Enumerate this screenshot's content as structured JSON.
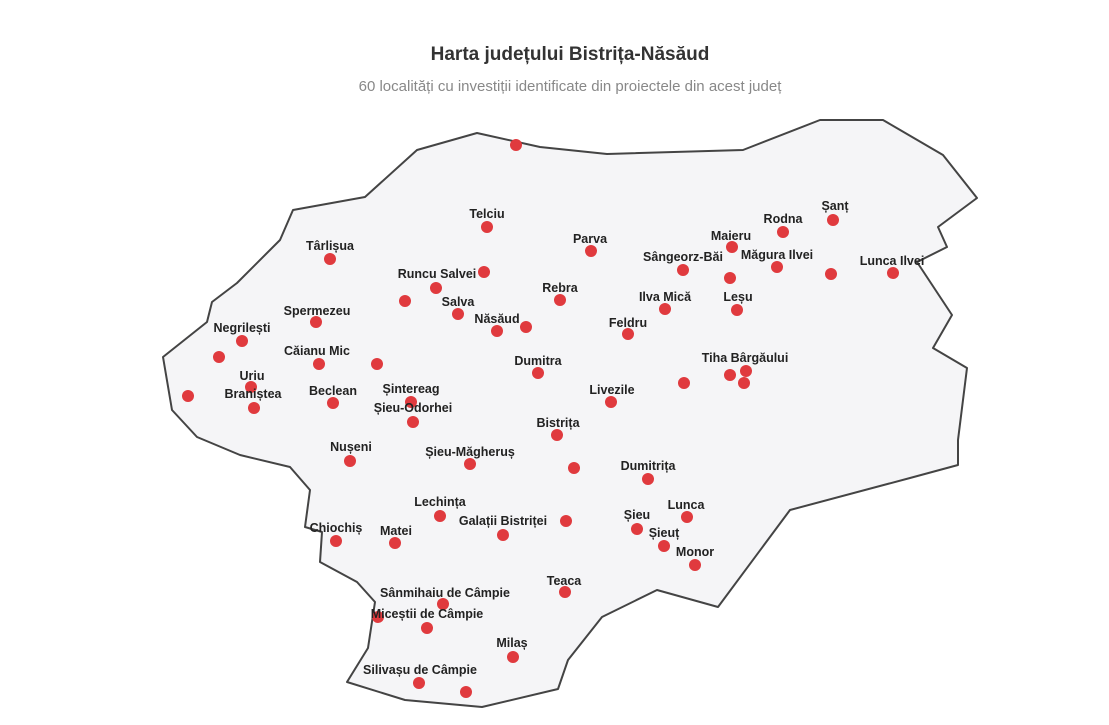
{
  "header": {
    "title": "Harta județului Bistrița-Năsăud",
    "subtitle": "60 localități cu investiții identificate din proiectele din acest județ"
  },
  "map": {
    "region": "Bistrița-Năsăud",
    "fill_color": "#f5f5f7",
    "border_color": "#444444",
    "marker_color": "#e03a3e",
    "labels": [
      "Telciu",
      "Târlișua",
      "Runcu Salvei",
      "Salva",
      "Năsăud",
      "Rebra",
      "Spermezeu",
      "Negrilești",
      "Căianu Mic",
      "Uriu",
      "Braniștea",
      "Beclean",
      "Șintereag",
      "Șieu-Odorhei",
      "Dumitra",
      "Bistrița",
      "Parva",
      "Sângeorz-Băi",
      "Maieru",
      "Rodna",
      "Șanț",
      "Măgura Ilvei",
      "Lunca Ilvei",
      "Ilva Mică",
      "Leșu",
      "Feldru",
      "Tiha Bârgăului",
      "Livezile",
      "Nușeni",
      "Șieu-Măgheruș",
      "Dumitrița",
      "Lechința",
      "Galații Bistriței",
      "Chiochiș",
      "Matei",
      "Șieu",
      "Lunca",
      "Șieuț",
      "Monor",
      "Teaca",
      "Sânmihaiu de Câmpie",
      "Miceștii de Câmpie",
      "Milaș",
      "Silivașu de Câmpie"
    ]
  }
}
